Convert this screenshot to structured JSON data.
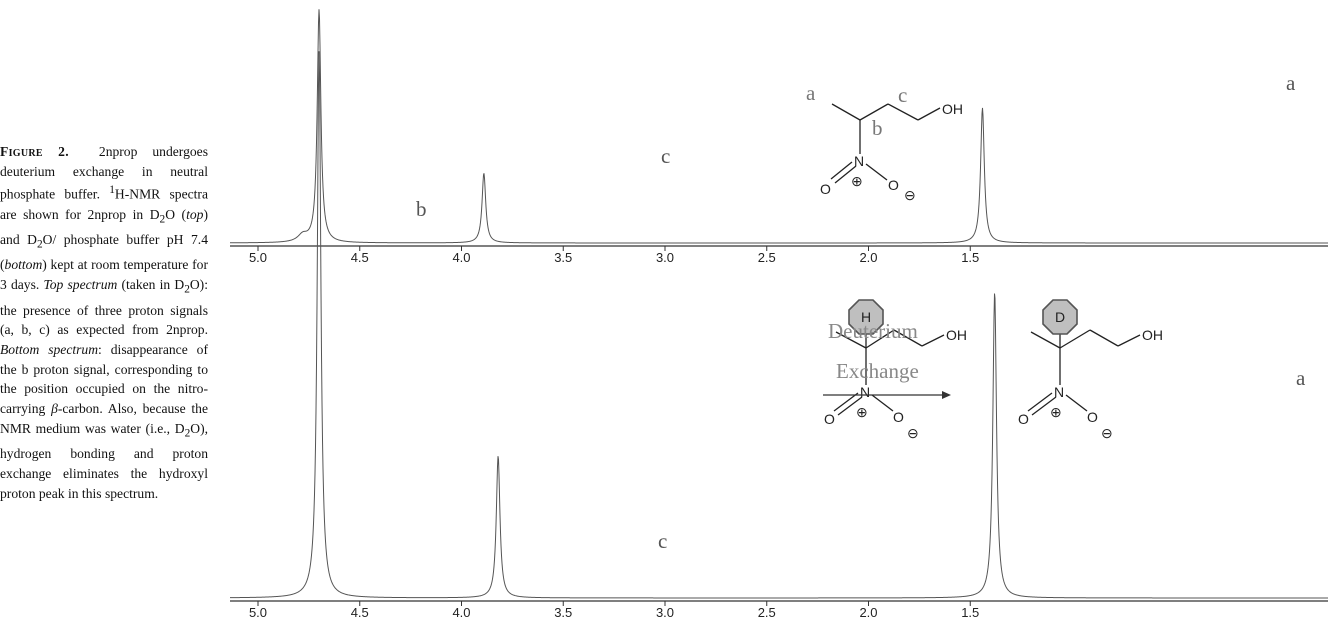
{
  "caption": {
    "label": "Figure 2.",
    "text_1": "2nprop undergoes deuterium exchange in neutral phosphate buffer. ",
    "sup_1": "1",
    "text_2": "H-NMR spectra are shown for 2nprop in D",
    "sub_1": "2",
    "text_3": "O (",
    "italic_1": "top",
    "text_4": ") and D",
    "sub_2": "2",
    "text_5": "O/ phosphate buffer pH 7.4 (",
    "italic_2": "bottom",
    "text_6": ") kept at room temperature for 3 days. ",
    "italic_3": "Top spectrum",
    "text_7": " (taken in D",
    "sub_3": "2",
    "text_8": "O): the presence of three proton signals (a, b, c) as expected from 2nprop. ",
    "italic_4": "Bottom spectrum",
    "text_9": ": disappearance of the b proton signal, corresponding to the position occupied on the nitro-carrying ",
    "beta": "β",
    "text_10": "-carbon. Also, because the NMR medium was water (i.e., D",
    "sub_4": "2",
    "text_11": "O), hydrogen bonding and proton exchange eliminates the hydroxyl proton peak in this spectrum."
  },
  "top_spectrum": {
    "peak_labels": {
      "a": "a",
      "b": "b",
      "c": "c"
    },
    "structure": {
      "a": "a",
      "b": "b",
      "c": "c",
      "OH": "OH",
      "N": "N",
      "O1": "O",
      "O2": "O",
      "plus": "⊕",
      "minus": "⊖"
    }
  },
  "bottom_spectrum": {
    "peak_labels": {
      "a": "a",
      "c": "c"
    },
    "left_structure": {
      "H": "H",
      "OH": "OH",
      "N": "N",
      "O1": "O",
      "O2": "O",
      "plus": "⊕",
      "minus": "⊖"
    },
    "right_structure": {
      "D": "D",
      "OH": "OH",
      "N": "N",
      "O1": "O",
      "O2": "O",
      "plus": "⊕",
      "minus": "⊖"
    },
    "arrow_label_top": "Deuterium",
    "arrow_label_bottom": "Exchange"
  },
  "chart_data": [
    {
      "type": "line",
      "x_reversed": true,
      "xlim": [
        5.0,
        1.3
      ],
      "x_ticks": [
        "5.0",
        "4.5",
        "4.0",
        "3.5",
        "3.0",
        "2.5",
        "2.0",
        "1.5"
      ],
      "peaks": [
        {
          "label": "b",
          "ppm": 4.78,
          "height": 0.03
        },
        {
          "label": "",
          "ppm": 4.7,
          "height": 1.0
        },
        {
          "label": "c",
          "ppm": 3.89,
          "height": 0.3
        },
        {
          "label": "a",
          "ppm": 1.44,
          "height": 0.58
        }
      ]
    },
    {
      "type": "line",
      "x_reversed": true,
      "xlim": [
        5.0,
        1.3
      ],
      "x_ticks": [
        "5.0",
        "4.5",
        "4.0",
        "3.5",
        "3.0",
        "2.5",
        "2.0",
        "1.5"
      ],
      "peaks": [
        {
          "label": "",
          "ppm": 4.7,
          "height": 1.0
        },
        {
          "label": "c",
          "ppm": 3.82,
          "height": 0.26
        },
        {
          "label": "a",
          "ppm": 1.38,
          "height": 0.56
        }
      ]
    }
  ]
}
